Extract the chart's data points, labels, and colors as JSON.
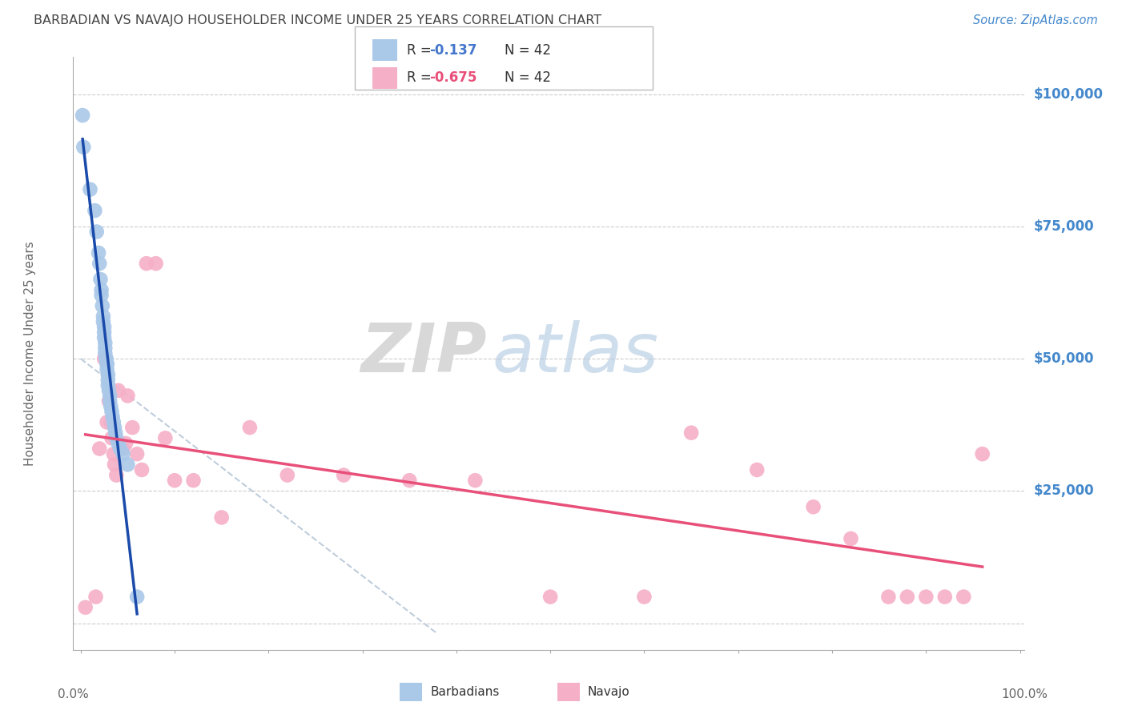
{
  "title": "BARBADIAN VS NAVAJO HOUSEHOLDER INCOME UNDER 25 YEARS CORRELATION CHART",
  "source": "Source: ZipAtlas.com",
  "ylabel": "Householder Income Under 25 years",
  "watermark_zip": "ZIP",
  "watermark_atlas": "atlas",
  "legend_barbadian_r": "-0.137",
  "legend_barbadian_n": "42",
  "legend_navajo_r": "-0.675",
  "legend_navajo_n": "42",
  "yticks": [
    0,
    25000,
    50000,
    75000,
    100000
  ],
  "ytick_labels": [
    "",
    "$25,000",
    "$50,000",
    "$75,000",
    "$100,000"
  ],
  "barbadian_color": "#aac8e8",
  "navajo_color": "#f5b0c8",
  "barbadian_line_color": "#1a4aaa",
  "navajo_line_color": "#e8507a",
  "dashed_line_color": "#b8c8d8",
  "background_color": "#ffffff",
  "grid_color": "#cccccc",
  "title_color": "#444444",
  "axis_label_color": "#666666",
  "ytick_label_color": "#4488cc",
  "xtick_label_color": "#666666",
  "legend_r_barb_color": "#4477cc",
  "legend_r_nav_color": "#e8507a",
  "legend_n_color": "#333333",
  "barbadian_x": [
    0.002,
    0.003,
    0.01,
    0.015,
    0.017,
    0.019,
    0.02,
    0.021,
    0.022,
    0.022,
    0.023,
    0.024,
    0.024,
    0.025,
    0.025,
    0.025,
    0.026,
    0.026,
    0.026,
    0.027,
    0.027,
    0.028,
    0.028,
    0.028,
    0.029,
    0.029,
    0.029,
    0.03,
    0.031,
    0.031,
    0.032,
    0.033,
    0.034,
    0.035,
    0.036,
    0.037,
    0.038,
    0.04,
    0.042,
    0.045,
    0.05,
    0.06
  ],
  "barbadian_y": [
    96000,
    90000,
    82000,
    78000,
    74000,
    70000,
    68000,
    65000,
    63000,
    62000,
    60000,
    58000,
    57000,
    56000,
    55000,
    54000,
    53000,
    52000,
    51000,
    50000,
    50000,
    49000,
    49000,
    48000,
    47000,
    46000,
    45000,
    44000,
    43000,
    42000,
    41000,
    40000,
    39000,
    38000,
    37000,
    36000,
    35000,
    34000,
    33000,
    32000,
    30000,
    5000
  ],
  "navajo_x": [
    0.005,
    0.016,
    0.02,
    0.025,
    0.028,
    0.03,
    0.032,
    0.033,
    0.035,
    0.036,
    0.038,
    0.04,
    0.042,
    0.045,
    0.048,
    0.05,
    0.055,
    0.06,
    0.065,
    0.07,
    0.08,
    0.09,
    0.1,
    0.12,
    0.15,
    0.18,
    0.22,
    0.28,
    0.35,
    0.42,
    0.5,
    0.6,
    0.65,
    0.72,
    0.78,
    0.82,
    0.86,
    0.88,
    0.9,
    0.92,
    0.94,
    0.96
  ],
  "navajo_y": [
    3000,
    5000,
    33000,
    50000,
    38000,
    42000,
    38000,
    35000,
    32000,
    30000,
    28000,
    44000,
    34000,
    33000,
    34000,
    43000,
    37000,
    32000,
    29000,
    68000,
    68000,
    35000,
    27000,
    27000,
    20000,
    37000,
    28000,
    28000,
    27000,
    27000,
    5000,
    5000,
    36000,
    29000,
    22000,
    16000,
    5000,
    5000,
    5000,
    5000,
    5000,
    32000
  ]
}
